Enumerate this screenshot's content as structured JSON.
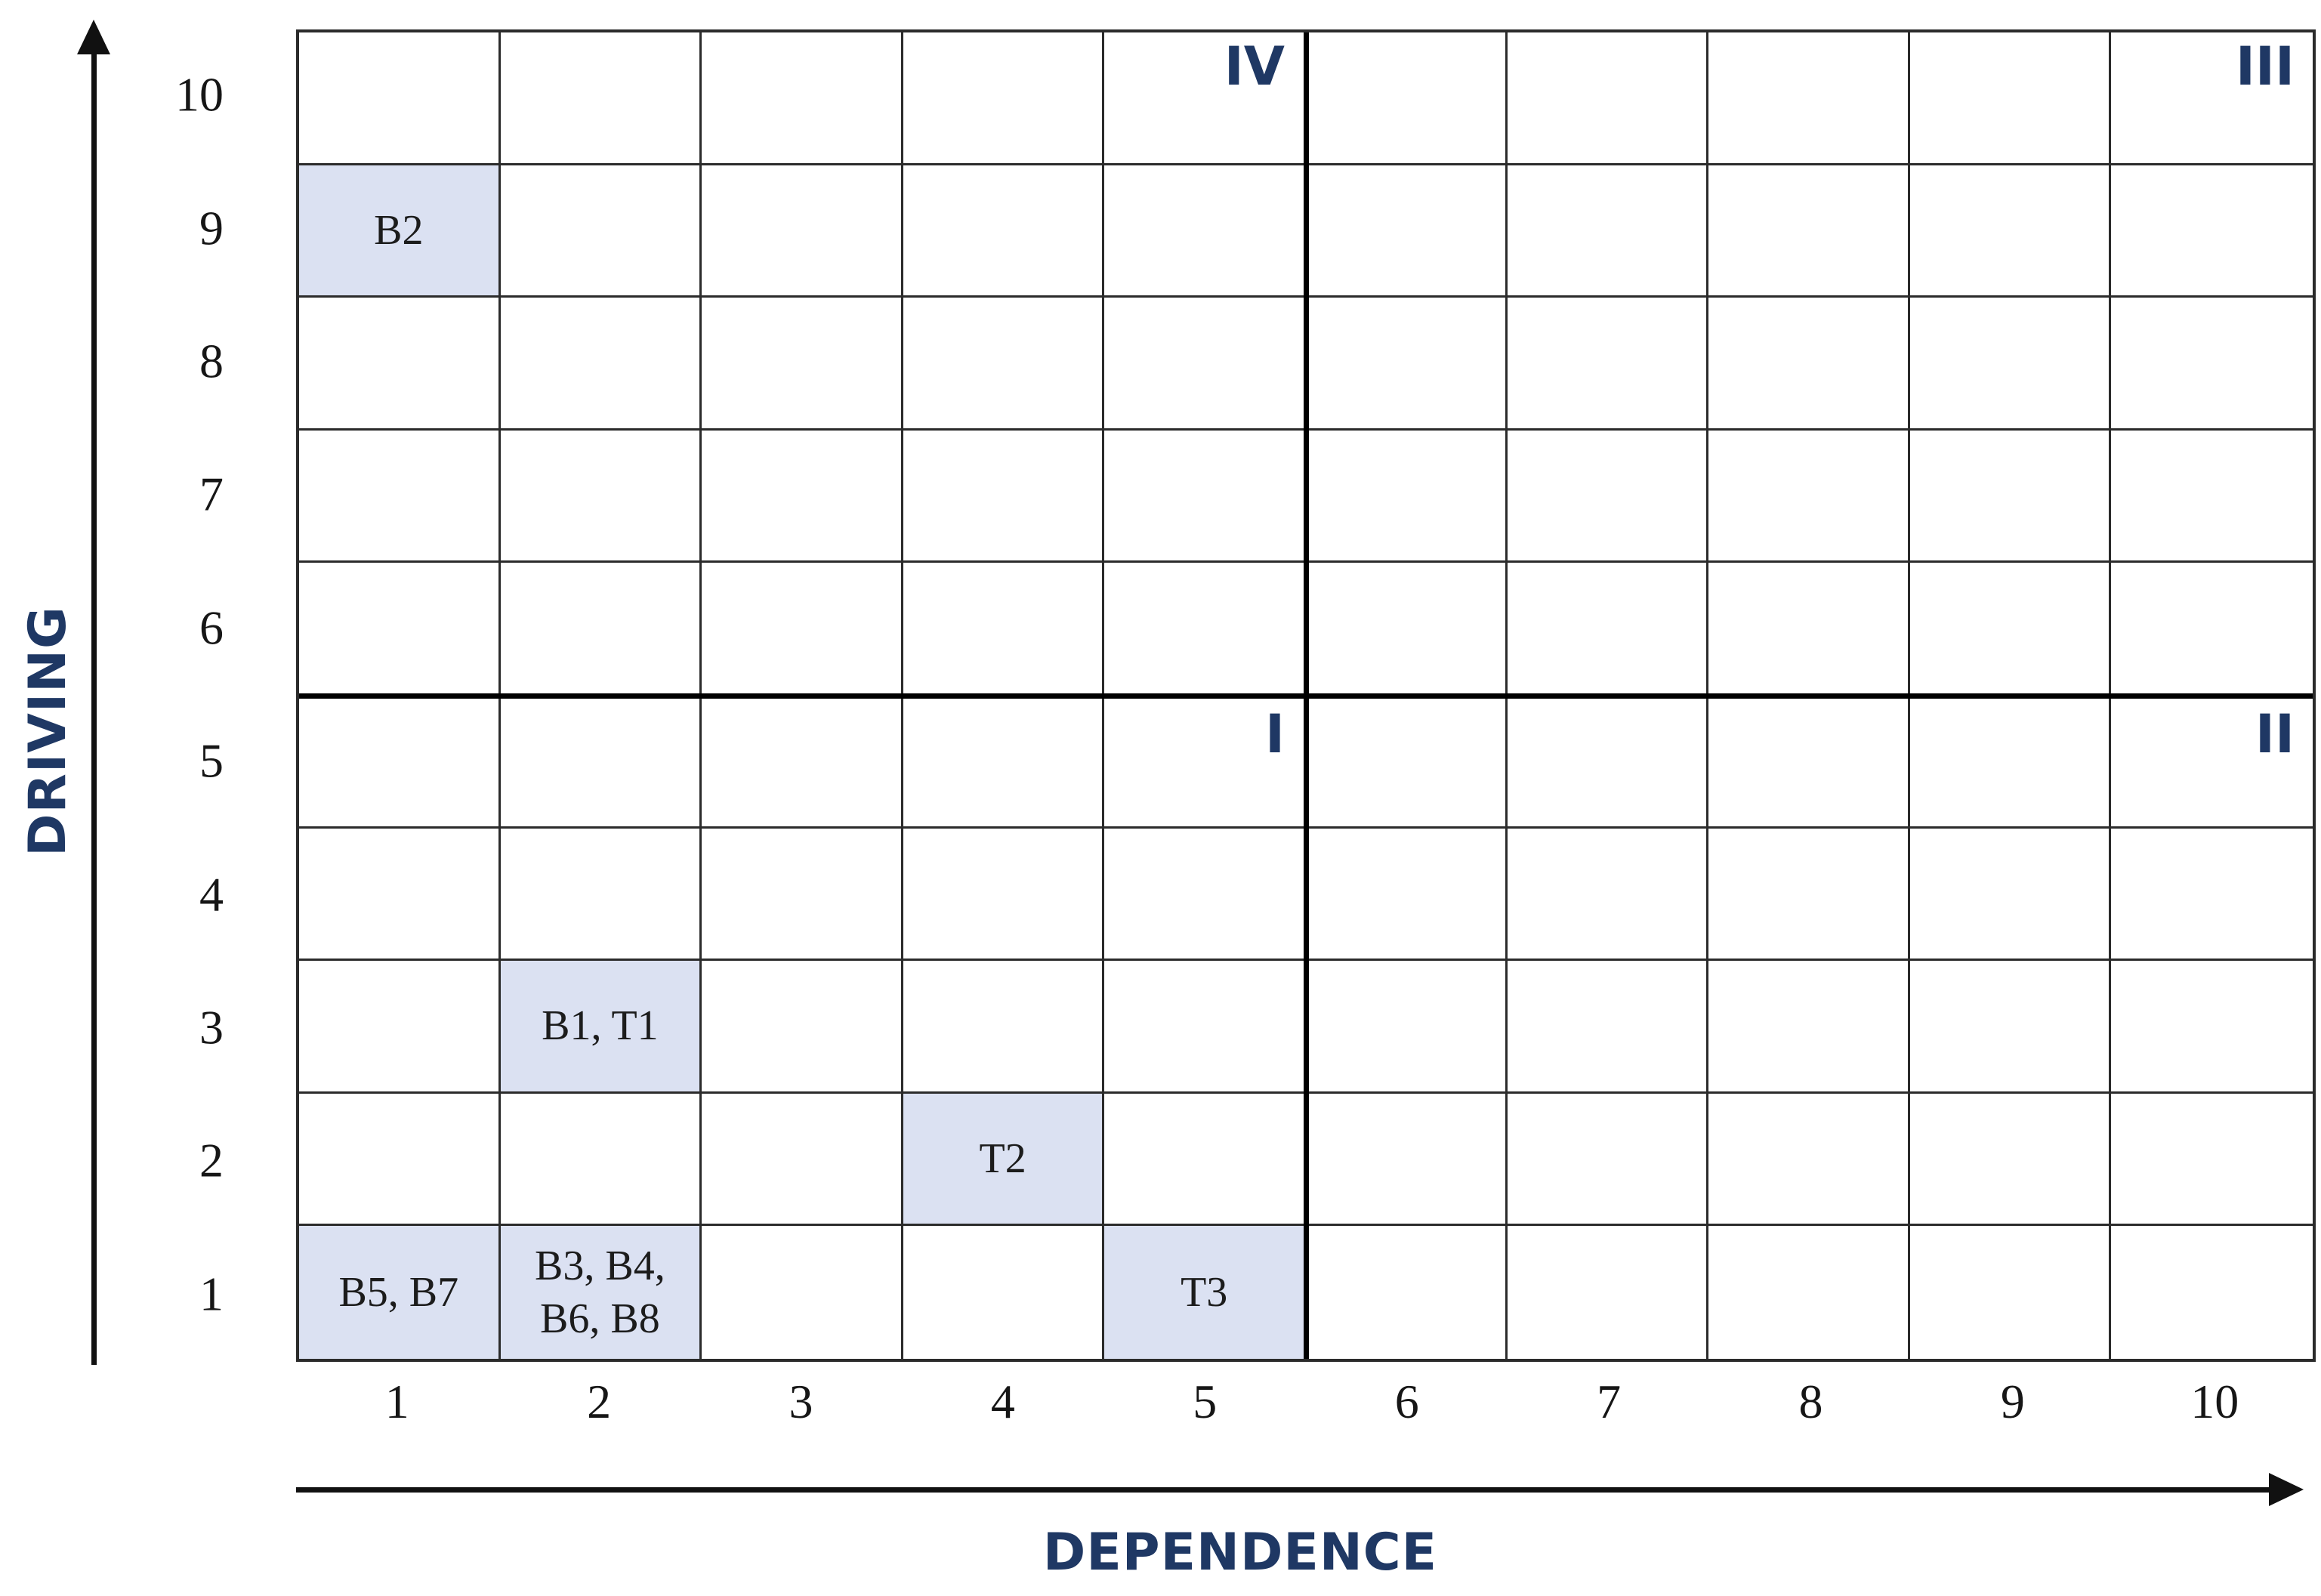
{
  "colors": {
    "highlight_fill": "#dbe1f2",
    "navy_accent": "#1f3864",
    "grid_line": "#2b2b2b",
    "quadrant_line": "#000000",
    "cell_text": "#1c1c1c"
  },
  "axes": {
    "x": {
      "title": "DEPENDENCE",
      "ticks": [
        "1",
        "2",
        "3",
        "4",
        "5",
        "6",
        "7",
        "8",
        "9",
        "10"
      ]
    },
    "y": {
      "title": "DRIVING",
      "ticks_top_to_bottom": [
        "10",
        "9",
        "8",
        "7",
        "6",
        "5",
        "4",
        "3",
        "2",
        "1"
      ]
    }
  },
  "quadrants": [
    {
      "key": "IV",
      "label": "IV",
      "location": "top-right corner of cell col 5, row 10"
    },
    {
      "key": "III",
      "label": "III",
      "location": "top-right corner of cell col 10, row 10"
    },
    {
      "key": "I",
      "label": "I",
      "location": "top-right corner of cell col 5, row 5"
    },
    {
      "key": "II",
      "label": "II",
      "location": "top-right corner of cell col 10, row 5"
    }
  ],
  "matrix": {
    "cols": 10,
    "rows": 10,
    "highlighted_cells": [
      {
        "col": 1,
        "row": 9,
        "text": "B2"
      },
      {
        "col": 2,
        "row": 3,
        "text": "B1, T1"
      },
      {
        "col": 4,
        "row": 2,
        "text": "T2"
      },
      {
        "col": 1,
        "row": 1,
        "text": "B5, B7"
      },
      {
        "col": 2,
        "row": 1,
        "text": "B3, B4,\nB6, B8"
      },
      {
        "col": 5,
        "row": 1,
        "text": "T3"
      }
    ]
  },
  "chart_data": {
    "type": "heatmap",
    "title": "",
    "xlabel": "DEPENDENCE",
    "ylabel": "DRIVING",
    "xlim": [
      1,
      10
    ],
    "ylim": [
      1,
      10
    ],
    "grid": "on",
    "quadrant_dividers": {
      "vertical_after_x": 5,
      "horizontal_after_y": 5
    },
    "quadrant_labels": [
      {
        "label": "IV",
        "x": 5,
        "y": 10
      },
      {
        "label": "III",
        "x": 10,
        "y": 10
      },
      {
        "label": "I",
        "x": 5,
        "y": 5
      },
      {
        "label": "II",
        "x": 10,
        "y": 5
      }
    ],
    "points": [
      {
        "labels": [
          "B2"
        ],
        "dependence": 1,
        "driving": 9
      },
      {
        "labels": [
          "B1",
          "T1"
        ],
        "dependence": 2,
        "driving": 3
      },
      {
        "labels": [
          "T2"
        ],
        "dependence": 4,
        "driving": 2
      },
      {
        "labels": [
          "B5",
          "B7"
        ],
        "dependence": 1,
        "driving": 1
      },
      {
        "labels": [
          "B3",
          "B4",
          "B6",
          "B8"
        ],
        "dependence": 2,
        "driving": 1
      },
      {
        "labels": [
          "T3"
        ],
        "dependence": 5,
        "driving": 1
      }
    ]
  }
}
